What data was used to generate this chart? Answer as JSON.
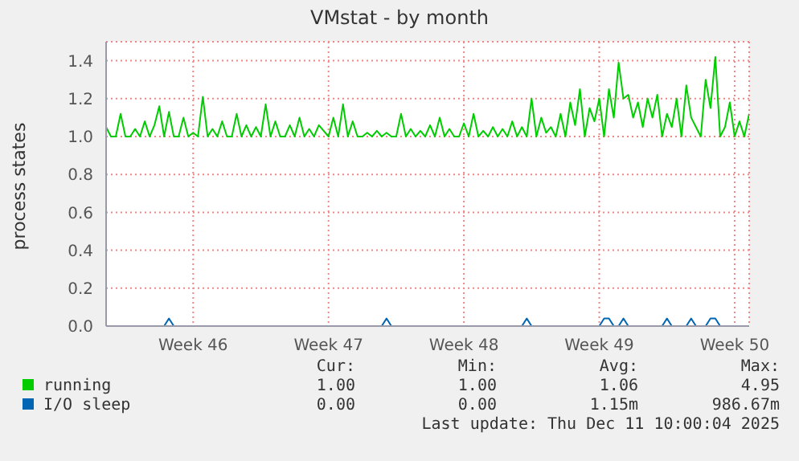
{
  "chart_data": {
    "type": "line",
    "title": "VMstat - by month",
    "ylabel": "process states",
    "categories": [
      null,
      null,
      null,
      null,
      null,
      null,
      null,
      null,
      null,
      null,
      null,
      null,
      null,
      null,
      null,
      null,
      null,
      null,
      "Week 46",
      null,
      null,
      null,
      null,
      null,
      null,
      null,
      null,
      null,
      null,
      null,
      null,
      null,
      null,
      null,
      null,
      null,
      null,
      null,
      null,
      null,
      null,
      null,
      null,
      null,
      null,
      null,
      "Week 47",
      null,
      null,
      null,
      null,
      null,
      null,
      null,
      null,
      null,
      null,
      null,
      null,
      null,
      null,
      null,
      null,
      null,
      null,
      null,
      null,
      null,
      null,
      null,
      null,
      null,
      null,
      null,
      "Week 48",
      null,
      null,
      null,
      null,
      null,
      null,
      null,
      null,
      null,
      null,
      null,
      null,
      null,
      null,
      null,
      null,
      null,
      null,
      null,
      null,
      null,
      null,
      null,
      null,
      null,
      null,
      null,
      "Week 49",
      null,
      null,
      null,
      null,
      null,
      null,
      null,
      null,
      null,
      null,
      null,
      null,
      null,
      null,
      null,
      null,
      null,
      null,
      null,
      null,
      null,
      null,
      null,
      null,
      null,
      null,
      null,
      "Week 50",
      null,
      null,
      null
    ],
    "ylim": [
      0,
      1.5
    ],
    "yticks": [
      {
        "value": 0,
        "label": "0.0"
      },
      {
        "value": 0.2,
        "label": "0.2"
      },
      {
        "value": 0.4,
        "label": "0.4"
      },
      {
        "value": 0.6,
        "label": "0.6"
      },
      {
        "value": 0.8,
        "label": "0.8"
      },
      {
        "value": 1,
        "label": "1.0"
      },
      {
        "value": 1.2,
        "label": "1.2"
      },
      {
        "value": 1.4,
        "label": "1.4"
      }
    ],
    "grid": true,
    "legend": "bottom left",
    "series": [
      {
        "name": "running",
        "color": "#00cc00",
        "values": [
          1.05,
          1.0,
          1.0,
          1.12,
          1.0,
          1.0,
          1.04,
          1.0,
          1.08,
          1.0,
          1.06,
          1.16,
          1.0,
          1.13,
          1.0,
          1.0,
          1.1,
          1.0,
          1.02,
          1.0,
          1.21,
          1.0,
          1.04,
          1.0,
          1.08,
          1.0,
          1.0,
          1.12,
          1.0,
          1.06,
          1.0,
          1.05,
          1.0,
          1.17,
          1.0,
          1.08,
          1.0,
          1.0,
          1.06,
          1.0,
          1.1,
          1.0,
          1.04,
          1.0,
          1.06,
          1.03,
          1.0,
          1.1,
          1.0,
          1.17,
          1.0,
          1.08,
          1.0,
          1.0,
          1.02,
          1.0,
          1.03,
          1.0,
          1.02,
          1.0,
          1.0,
          1.12,
          1.0,
          1.04,
          1.0,
          1.03,
          1.0,
          1.06,
          1.0,
          1.1,
          1.0,
          1.04,
          1.0,
          1.0,
          1.07,
          1.0,
          1.12,
          1.0,
          1.03,
          1.0,
          1.05,
          1.0,
          1.04,
          1.0,
          1.08,
          1.0,
          1.05,
          1.0,
          1.2,
          1.0,
          1.1,
          1.02,
          1.05,
          1.0,
          1.12,
          1.0,
          1.18,
          1.06,
          1.25,
          1.0,
          1.15,
          1.08,
          1.2,
          1.0,
          1.25,
          1.1,
          1.39,
          1.2,
          1.22,
          1.1,
          1.18,
          1.05,
          1.2,
          1.1,
          1.22,
          1.0,
          1.12,
          1.05,
          1.2,
          1.0,
          1.27,
          1.1,
          1.05,
          1.0,
          1.3,
          1.15,
          1.42,
          1.0,
          1.05,
          1.18,
          1.0,
          1.08,
          1.0,
          1.12
        ]
      },
      {
        "name": "I/O sleep",
        "color": "#0066b3",
        "values": [
          null,
          null,
          null,
          null,
          null,
          null,
          null,
          null,
          null,
          null,
          null,
          null,
          0,
          0.04,
          0,
          null,
          null,
          null,
          null,
          null,
          null,
          null,
          null,
          null,
          null,
          null,
          null,
          null,
          null,
          null,
          null,
          null,
          null,
          null,
          null,
          null,
          null,
          null,
          null,
          null,
          null,
          null,
          null,
          null,
          null,
          null,
          null,
          null,
          null,
          null,
          null,
          null,
          null,
          null,
          null,
          null,
          null,
          0,
          0.04,
          0,
          null,
          null,
          null,
          null,
          null,
          null,
          null,
          null,
          null,
          null,
          null,
          null,
          null,
          null,
          null,
          null,
          null,
          null,
          null,
          null,
          null,
          null,
          null,
          null,
          null,
          null,
          0,
          0.04,
          0,
          null,
          null,
          null,
          null,
          null,
          null,
          null,
          null,
          null,
          null,
          null,
          null,
          null,
          0,
          0.04,
          0.04,
          0,
          0,
          0.04,
          0,
          null,
          null,
          null,
          null,
          null,
          null,
          0,
          0.04,
          0,
          null,
          null,
          0,
          0.04,
          0,
          null,
          0,
          0.04,
          0.04,
          0,
          null,
          null,
          null,
          null,
          null,
          null
        ]
      }
    ],
    "annotations": [
      "Cur:",
      "Min:",
      "Avg:",
      "Max:",
      "1.00",
      "1.00",
      "1.06",
      "4.95",
      "0.00",
      "0.00",
      "1.15m",
      "986.67m",
      "Last update: Thu Dec 11 10:00:04 2025"
    ]
  }
}
